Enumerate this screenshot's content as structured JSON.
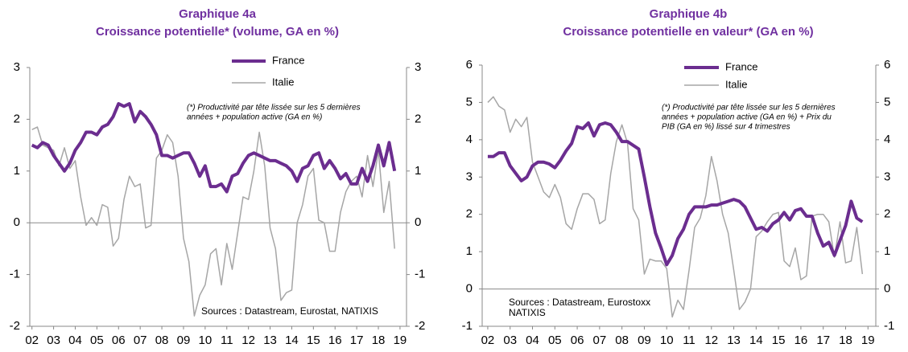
{
  "chart_data": [
    {
      "type": "line",
      "title": "Graphique 4a",
      "subtitle": "Croissance potentielle* (volume, GA en %)",
      "notes": [
        "(*) Productivité par tête lissée sur les 5 dernières",
        "années + population active (GA en %)"
      ],
      "sources": [
        "Sources : Datastream, Eurostat, NATIXIS"
      ],
      "x": [
        2002,
        2002.25,
        2002.5,
        2002.75,
        2003,
        2003.25,
        2003.5,
        2003.75,
        2004,
        2004.25,
        2004.5,
        2004.75,
        2005,
        2005.25,
        2005.5,
        2005.75,
        2006,
        2006.25,
        2006.5,
        2006.75,
        2007,
        2007.25,
        2007.5,
        2007.75,
        2008,
        2008.25,
        2008.5,
        2008.75,
        2009,
        2009.25,
        2009.5,
        2009.75,
        2010,
        2010.25,
        2010.5,
        2010.75,
        2011,
        2011.25,
        2011.5,
        2011.75,
        2012,
        2012.25,
        2012.5,
        2012.75,
        2013,
        2013.25,
        2013.5,
        2013.75,
        2014,
        2014.25,
        2014.5,
        2014.75,
        2015,
        2015.25,
        2015.5,
        2015.75,
        2016,
        2016.25,
        2016.5,
        2016.75,
        2017,
        2017.25,
        2017.5,
        2017.75,
        2018,
        2018.25,
        2018.5,
        2018.75
      ],
      "series": [
        {
          "name": "France",
          "color": "#6b2d8f",
          "values": [
            1.5,
            1.45,
            1.55,
            1.5,
            1.3,
            1.15,
            1.0,
            1.15,
            1.4,
            1.55,
            1.75,
            1.75,
            1.7,
            1.85,
            1.9,
            2.05,
            2.3,
            2.25,
            2.3,
            1.95,
            2.15,
            2.05,
            1.9,
            1.7,
            1.3,
            1.3,
            1.25,
            1.3,
            1.35,
            1.35,
            1.15,
            0.9,
            1.1,
            0.7,
            0.7,
            0.75,
            0.6,
            0.9,
            0.95,
            1.15,
            1.3,
            1.35,
            1.3,
            1.25,
            1.2,
            1.2,
            1.15,
            1.1,
            1.0,
            0.8,
            1.05,
            1.1,
            1.3,
            1.35,
            1.05,
            1.2,
            1.05,
            0.85,
            0.95,
            0.75,
            0.75,
            1.05,
            0.8,
            1.1,
            1.5,
            1.1,
            1.55,
            1.0
          ]
        },
        {
          "name": "Italie",
          "color": "#a6a6a6",
          "values": [
            1.8,
            1.85,
            1.5,
            1.45,
            1.4,
            1.1,
            1.45,
            1.05,
            1.2,
            0.5,
            -0.05,
            0.1,
            -0.05,
            0.35,
            0.3,
            -0.45,
            -0.3,
            0.45,
            0.9,
            0.7,
            0.75,
            -0.1,
            -0.05,
            1.25,
            1.4,
            1.7,
            1.55,
            0.9,
            -0.3,
            -0.75,
            -1.8,
            -1.4,
            -1.2,
            -0.6,
            -0.5,
            -1.2,
            -0.4,
            -0.9,
            -0.2,
            0.5,
            0.45,
            1.0,
            1.75,
            1.1,
            -0.1,
            -0.5,
            -1.5,
            -1.35,
            -1.3,
            0.0,
            0.35,
            0.9,
            1.05,
            0.05,
            0.0,
            -0.55,
            -0.55,
            0.2,
            0.6,
            0.8,
            0.9,
            0.5,
            1.3,
            0.7,
            1.4,
            0.2,
            0.8,
            -0.5
          ]
        }
      ],
      "xlim": [
        2001.9,
        2019.3
      ],
      "xticks": [
        {
          "value": 2002,
          "label": "02"
        },
        {
          "value": 2003,
          "label": "03"
        },
        {
          "value": 2004,
          "label": "04"
        },
        {
          "value": 2005,
          "label": "05"
        },
        {
          "value": 2006,
          "label": "06"
        },
        {
          "value": 2007,
          "label": "07"
        },
        {
          "value": 2008,
          "label": "08"
        },
        {
          "value": 2009,
          "label": "09"
        },
        {
          "value": 2010,
          "label": "10"
        },
        {
          "value": 2011,
          "label": "11"
        },
        {
          "value": 2012,
          "label": "12"
        },
        {
          "value": 2013,
          "label": "13"
        },
        {
          "value": 2014,
          "label": "14"
        },
        {
          "value": 2015,
          "label": "15"
        },
        {
          "value": 2016,
          "label": "16"
        },
        {
          "value": 2017,
          "label": "17"
        },
        {
          "value": 2018,
          "label": "18"
        },
        {
          "value": 2019,
          "label": "19"
        }
      ],
      "ylim": [
        -2,
        3
      ],
      "yticks": [
        -2,
        -1,
        0,
        1,
        2,
        3
      ],
      "y2lim": [
        -2,
        3
      ],
      "y2ticks": [
        -2,
        -1,
        0,
        1,
        2,
        3
      ]
    },
    {
      "type": "line",
      "title": "Graphique 4b",
      "subtitle": "Croissance potentielle en valeur* (GA en %)",
      "notes": [
        "(*) Productivité par tête lissée sur les 5 dernières",
        "années + population active (GA en %) + Prix du",
        "PIB (GA en %) lissé sur 4 trimestres"
      ],
      "sources": [
        "Sources : Datastream, Eurostoxx",
        "NATIXIS"
      ],
      "x": [
        2002,
        2002.25,
        2002.5,
        2002.75,
        2003,
        2003.25,
        2003.5,
        2003.75,
        2004,
        2004.25,
        2004.5,
        2004.75,
        2005,
        2005.25,
        2005.5,
        2005.75,
        2006,
        2006.25,
        2006.5,
        2006.75,
        2007,
        2007.25,
        2007.5,
        2007.75,
        2008,
        2008.25,
        2008.5,
        2008.75,
        2009,
        2009.25,
        2009.5,
        2009.75,
        2010,
        2010.25,
        2010.5,
        2010.75,
        2011,
        2011.25,
        2011.5,
        2011.75,
        2012,
        2012.25,
        2012.5,
        2012.75,
        2013,
        2013.25,
        2013.5,
        2013.75,
        2014,
        2014.25,
        2014.5,
        2014.75,
        2015,
        2015.25,
        2015.5,
        2015.75,
        2016,
        2016.25,
        2016.5,
        2016.75,
        2017,
        2017.25,
        2017.5,
        2017.75,
        2018,
        2018.25,
        2018.5,
        2018.75
      ],
      "series": [
        {
          "name": "France",
          "color": "#6b2d8f",
          "values": [
            3.55,
            3.55,
            3.65,
            3.65,
            3.3,
            3.1,
            2.9,
            3.0,
            3.3,
            3.4,
            3.4,
            3.35,
            3.25,
            3.45,
            3.7,
            3.9,
            4.35,
            4.3,
            4.45,
            4.1,
            4.4,
            4.45,
            4.4,
            4.2,
            3.95,
            3.95,
            3.85,
            3.75,
            3.0,
            2.2,
            1.5,
            1.1,
            0.65,
            0.9,
            1.35,
            1.6,
            2.0,
            2.2,
            2.2,
            2.2,
            2.25,
            2.25,
            2.3,
            2.35,
            2.4,
            2.35,
            2.2,
            1.9,
            1.6,
            1.65,
            1.55,
            1.75,
            1.85,
            2.05,
            1.85,
            2.1,
            2.15,
            1.95,
            1.95,
            1.5,
            1.15,
            1.25,
            0.9,
            1.3,
            1.7,
            2.35,
            1.9,
            1.8
          ]
        },
        {
          "name": "Italie",
          "color": "#a6a6a6",
          "values": [
            5.0,
            5.15,
            4.9,
            4.8,
            4.2,
            4.55,
            4.35,
            4.6,
            3.4,
            3.0,
            2.6,
            2.45,
            2.8,
            2.45,
            1.75,
            1.6,
            2.15,
            2.55,
            2.55,
            2.4,
            1.75,
            1.85,
            3.1,
            3.95,
            4.4,
            3.9,
            2.15,
            1.85,
            0.4,
            0.8,
            0.75,
            0.75,
            0.55,
            -0.75,
            -0.3,
            -0.55,
            0.5,
            1.65,
            1.9,
            2.5,
            3.55,
            2.9,
            2.0,
            1.5,
            0.5,
            -0.55,
            -0.35,
            0.0,
            1.4,
            1.55,
            1.8,
            2.0,
            2.05,
            0.75,
            0.6,
            1.1,
            0.25,
            0.35,
            1.95,
            2.0,
            2.0,
            1.8,
            0.85,
            1.8,
            0.7,
            0.75,
            1.65,
            0.4
          ]
        }
      ],
      "xlim": [
        2001.75,
        2019.35
      ],
      "xticks": [
        {
          "value": 2002,
          "label": "02"
        },
        {
          "value": 2003,
          "label": "03"
        },
        {
          "value": 2004,
          "label": "04"
        },
        {
          "value": 2005,
          "label": "05"
        },
        {
          "value": 2006,
          "label": "06"
        },
        {
          "value": 2007,
          "label": "07"
        },
        {
          "value": 2008,
          "label": "08"
        },
        {
          "value": 2009,
          "label": "09"
        },
        {
          "value": 2010,
          "label": "10"
        },
        {
          "value": 2011,
          "label": "11"
        },
        {
          "value": 2012,
          "label": "12"
        },
        {
          "value": 2013,
          "label": "13"
        },
        {
          "value": 2014,
          "label": "14"
        },
        {
          "value": 2015,
          "label": "15"
        },
        {
          "value": 2016,
          "label": "16"
        },
        {
          "value": 2017,
          "label": "17"
        },
        {
          "value": 2018,
          "label": "18"
        },
        {
          "value": 2019,
          "label": "19"
        }
      ],
      "ylim": [
        -1,
        6
      ],
      "yticks": [
        -1,
        0,
        1,
        2,
        3,
        4,
        5,
        6
      ],
      "y2lim": [
        -1,
        6
      ],
      "y2ticks": [
        -1,
        0,
        1,
        2,
        3,
        4,
        5,
        6
      ]
    }
  ]
}
